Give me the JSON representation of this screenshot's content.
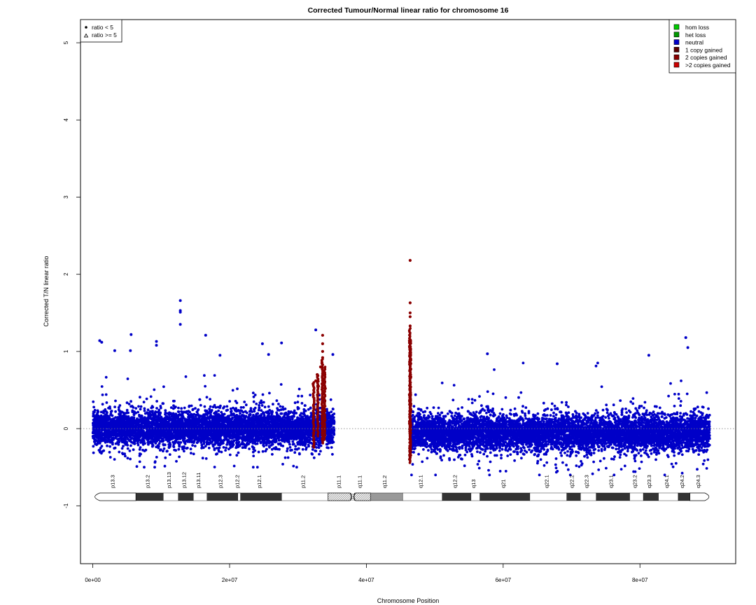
{
  "chart_data": {
    "type": "scatter",
    "title": "Corrected Tumour/Normal linear ratio for chromosome  16",
    "xlabel": "Chromosome Position",
    "ylabel": "Corrected T/N linear ratio",
    "xlim": [
      -1800000,
      94000000
    ],
    "ylim": [
      -1.75,
      5.3
    ],
    "x_ticks": [
      {
        "value": 0,
        "label": "0e+00"
      },
      {
        "value": 20000000,
        "label": "2e+07"
      },
      {
        "value": 40000000,
        "label": "4e+07"
      },
      {
        "value": 60000000,
        "label": "6e+07"
      },
      {
        "value": 80000000,
        "label": "8e+07"
      }
    ],
    "y_ticks": [
      {
        "value": -1,
        "label": "-1"
      },
      {
        "value": 0,
        "label": "0"
      },
      {
        "value": 1,
        "label": "1"
      },
      {
        "value": 2,
        "label": "2"
      },
      {
        "value": 3,
        "label": "3"
      },
      {
        "value": 4,
        "label": "4"
      },
      {
        "value": 5,
        "label": "5"
      }
    ],
    "reference_line": {
      "y": 0,
      "style": "dotted"
    },
    "colors": {
      "hom_loss": "#00cc00",
      "het_loss": "#009900",
      "neutral": "#0000c8",
      "one_copy_gained": "#5a0000",
      "two_copies_gained": "#8b0000",
      "more_copies_gained": "#cc0000"
    },
    "series": [
      {
        "name": "neutral",
        "color": "#0000c8",
        "regions": [
          {
            "x_start": 0,
            "x_end": 35300000,
            "center": 0.0,
            "spread_sd": 0.2,
            "min": -0.5,
            "max": 0.75
          },
          {
            "x_start": 46500000,
            "x_end": 90200000,
            "center": -0.05,
            "spread_sd": 0.2,
            "min": -0.6,
            "max": 0.85
          }
        ],
        "outliers": [
          {
            "x": 12800000,
            "y": 1.66
          },
          {
            "x": 12800000,
            "y": 1.53
          },
          {
            "x": 12800000,
            "y": 1.51
          },
          {
            "x": 12800000,
            "y": 1.35
          },
          {
            "x": 5600000,
            "y": 1.22
          },
          {
            "x": 16500000,
            "y": 1.21
          },
          {
            "x": 32600000,
            "y": 1.28
          },
          {
            "x": 9300000,
            "y": 1.13
          },
          {
            "x": 9300000,
            "y": 1.08
          },
          {
            "x": 1000000,
            "y": 1.14
          },
          {
            "x": 1300000,
            "y": 1.12
          },
          {
            "x": 24800000,
            "y": 1.1
          },
          {
            "x": 27600000,
            "y": 1.11
          },
          {
            "x": 86700000,
            "y": 1.18
          },
          {
            "x": 87000000,
            "y": 1.05
          },
          {
            "x": 57700000,
            "y": 0.97
          },
          {
            "x": 81300000,
            "y": 0.95
          },
          {
            "x": 18600000,
            "y": 0.95
          },
          {
            "x": 25700000,
            "y": 0.96
          },
          {
            "x": 35100000,
            "y": 0.96
          },
          {
            "x": 3200000,
            "y": 1.01
          },
          {
            "x": 5500000,
            "y": 1.01
          },
          {
            "x": 67900000,
            "y": 0.84
          }
        ]
      },
      {
        "name": "2 copies gained",
        "color": "#8b0000",
        "points": [
          {
            "x": 33600000,
            "y": 1.21
          },
          {
            "x": 33600000,
            "y": 1.1
          },
          {
            "x": 33600000,
            "y": 1.0
          },
          {
            "x": 33600000,
            "y": 0.92
          },
          {
            "x": 33500000,
            "y": 0.85
          },
          {
            "x": 33300000,
            "y": 0.8
          },
          {
            "x": 33800000,
            "y": 0.75
          },
          {
            "x": 32800000,
            "y": 0.7
          },
          {
            "x": 32600000,
            "y": 0.62
          },
          {
            "x": 32200000,
            "y": 0.58
          },
          {
            "x": 33000000,
            "y": 0.55
          },
          {
            "x": 34000000,
            "y": 0.52
          },
          {
            "x": 46400000,
            "y": 2.18
          },
          {
            "x": 46400000,
            "y": 1.63
          },
          {
            "x": 46400000,
            "y": 1.5
          },
          {
            "x": 46400000,
            "y": 1.45
          },
          {
            "x": 46400000,
            "y": 1.33
          }
        ],
        "vertical_segments": [
          {
            "x": 46350000,
            "y_min": -0.45,
            "y_max": 1.3
          },
          {
            "x": 46450000,
            "y_min": -0.4,
            "y_max": 1.15
          },
          {
            "x": 33550000,
            "y_min": -0.2,
            "y_max": 0.9
          },
          {
            "x": 32300000,
            "y_min": -0.25,
            "y_max": 0.6
          },
          {
            "x": 32900000,
            "y_min": -0.1,
            "y_max": 0.7
          },
          {
            "x": 33900000,
            "y_min": -0.15,
            "y_max": 0.8
          }
        ]
      }
    ],
    "legend_right": {
      "position": "top-right",
      "items": [
        {
          "label": "hom loss",
          "color": "#00cc00"
        },
        {
          "label": "het loss",
          "color": "#009900"
        },
        {
          "label": "neutral",
          "color": "#0000c8"
        },
        {
          "label": "1 copy gained",
          "color": "#5a0000"
        },
        {
          "label": "2 copies gained",
          "color": "#8b0000"
        },
        {
          "label": ">2 copies gained",
          "color": "#cc0000"
        }
      ]
    },
    "legend_left": {
      "position": "top-left",
      "items": [
        {
          "label": "ratio < 5",
          "symbol": "dot"
        },
        {
          "label": "ratio >= 5",
          "symbol": "triangle"
        }
      ]
    },
    "ideogram": {
      "centromere_x": 38000000,
      "bands": [
        {
          "name": "p13.3",
          "start": 0,
          "end": 6300000,
          "stain": "gneg"
        },
        {
          "name": "p13.2",
          "start": 6300000,
          "end": 10300000,
          "stain": "gpos50"
        },
        {
          "name": "p13.13",
          "start": 10300000,
          "end": 12500000,
          "stain": "gneg"
        },
        {
          "name": "p13.12",
          "start": 12500000,
          "end": 14700000,
          "stain": "gpos50"
        },
        {
          "name": "p13.11",
          "start": 14700000,
          "end": 16700000,
          "stain": "gneg"
        },
        {
          "name": "p12.3",
          "start": 16700000,
          "end": 21200000,
          "stain": "gpos50"
        },
        {
          "name": "p12.2",
          "start": 21200000,
          "end": 21600000,
          "stain": "gneg"
        },
        {
          "name": "p12.1",
          "start": 21600000,
          "end": 27600000,
          "stain": "gpos50"
        },
        {
          "name": "p11.2",
          "start": 27600000,
          "end": 34400000,
          "stain": "gneg"
        },
        {
          "name": "p11.1",
          "start": 34400000,
          "end": 38000000,
          "stain": "acen"
        },
        {
          "name": "q11.1",
          "start": 38000000,
          "end": 40600000,
          "stain": "acen"
        },
        {
          "name": "q11.2",
          "start": 40600000,
          "end": 45300000,
          "stain": "gvar"
        },
        {
          "name": "q12.1",
          "start": 45300000,
          "end": 51100000,
          "stain": "gneg"
        },
        {
          "name": "q12.2",
          "start": 51100000,
          "end": 55300000,
          "stain": "gpos50"
        },
        {
          "name": "q13",
          "start": 55300000,
          "end": 56600000,
          "stain": "gneg"
        },
        {
          "name": "q21",
          "start": 56600000,
          "end": 63900000,
          "stain": "gpos50"
        },
        {
          "name": "q22.1",
          "start": 63900000,
          "end": 69300000,
          "stain": "gneg"
        },
        {
          "name": "q22.2",
          "start": 69300000,
          "end": 71300000,
          "stain": "gpos50"
        },
        {
          "name": "q22.3",
          "start": 71300000,
          "end": 73600000,
          "stain": "gneg"
        },
        {
          "name": "q23.1",
          "start": 73600000,
          "end": 78500000,
          "stain": "gpos50"
        },
        {
          "name": "q23.2",
          "start": 78500000,
          "end": 80500000,
          "stain": "gneg"
        },
        {
          "name": "q23.3",
          "start": 80500000,
          "end": 82700000,
          "stain": "gpos50"
        },
        {
          "name": "q24.1",
          "start": 82700000,
          "end": 85600000,
          "stain": "gneg"
        },
        {
          "name": "q24.2",
          "start": 85600000,
          "end": 87300000,
          "stain": "gpos50"
        },
        {
          "name": "q24.3",
          "start": 87300000,
          "end": 90300000,
          "stain": "gneg"
        }
      ]
    }
  }
}
